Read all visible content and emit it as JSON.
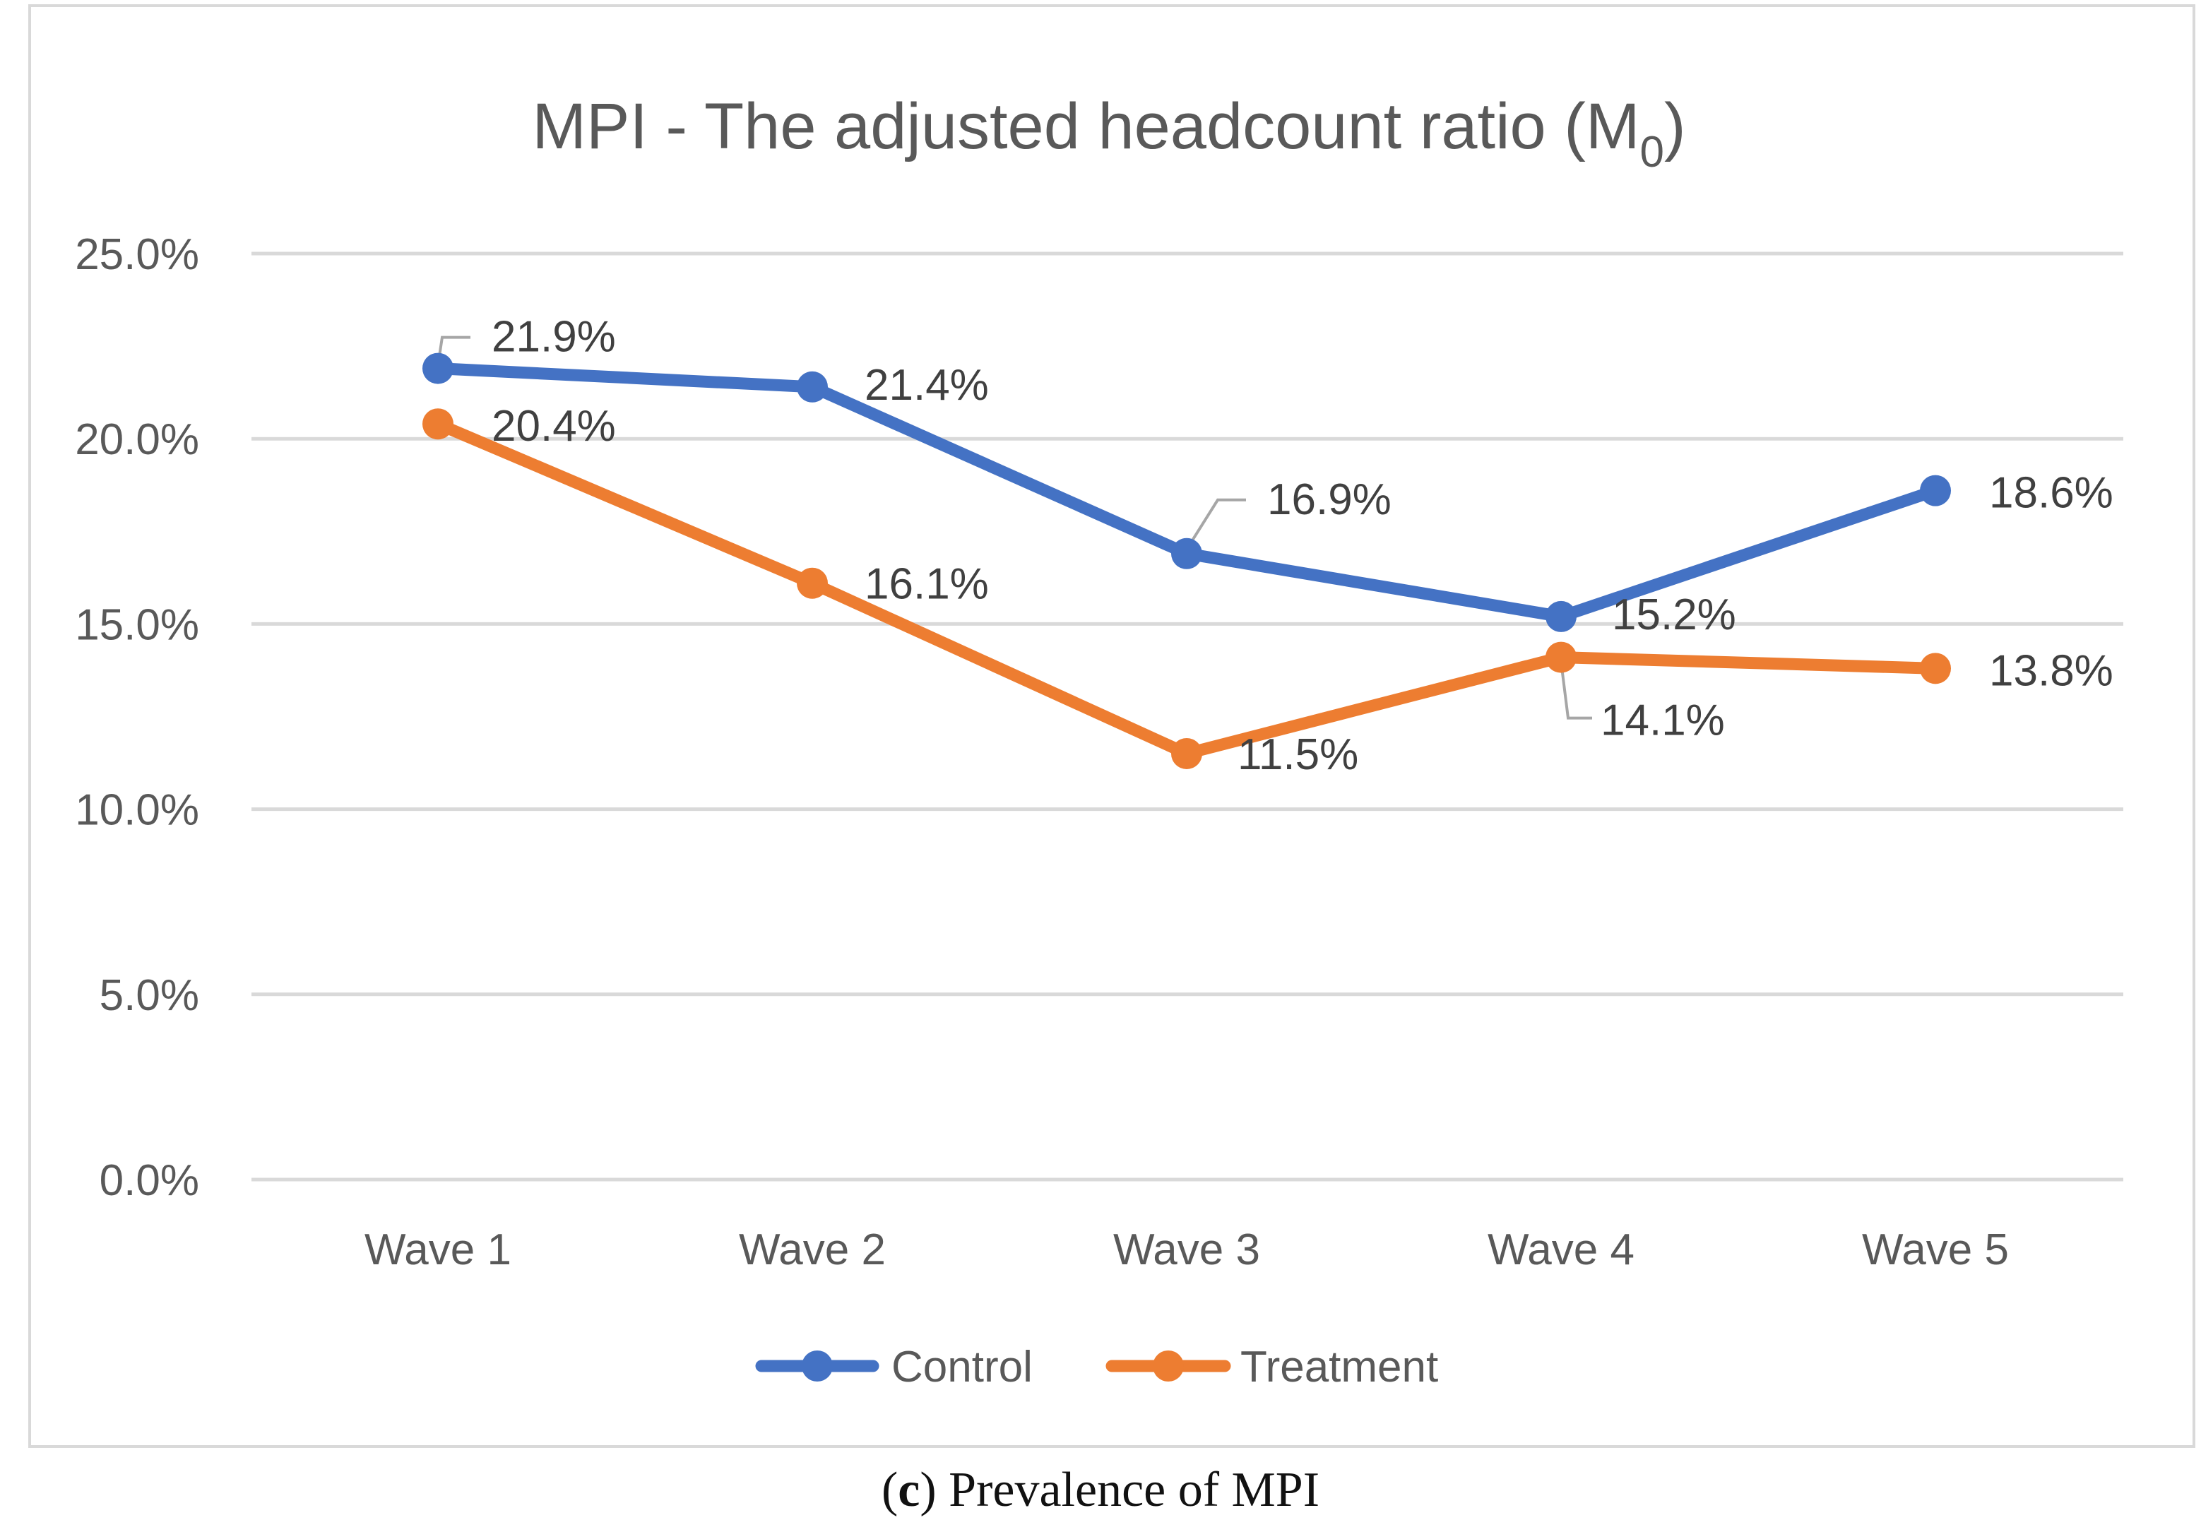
{
  "chart_data": {
    "type": "line",
    "title": "MPI - The adjusted headcount ratio (M",
    "title_subscript": "0",
    "title_suffix": ")",
    "categories": [
      "Wave 1",
      "Wave 2",
      "Wave 3",
      "Wave 4",
      "Wave 5"
    ],
    "series": [
      {
        "name": "Control",
        "color": "#4472c4",
        "values": [
          21.9,
          21.4,
          16.9,
          15.2,
          18.6
        ],
        "labels": [
          "21.9%",
          "21.4%",
          "16.9%",
          "15.2%",
          "18.6%"
        ]
      },
      {
        "name": "Treatment",
        "color": "#ed7d31",
        "values": [
          20.4,
          16.1,
          11.5,
          14.1,
          13.8
        ],
        "labels": [
          "20.4%",
          "16.1%",
          "11.5%",
          "14.1%",
          "13.8%"
        ]
      }
    ],
    "y_ticks": [
      0,
      5,
      10,
      15,
      20,
      25
    ],
    "y_tick_labels": [
      "0.0%",
      "5.0%",
      "10.0%",
      "15.0%",
      "20.0%",
      "25.0%"
    ],
    "ylim": [
      0,
      25
    ],
    "xlabel": "",
    "ylabel": "",
    "grid": true,
    "legend_position": "bottom",
    "gridline_color": "#d9d9d9"
  },
  "caption": {
    "open": "(",
    "letter": "c",
    "close": ")",
    "text": " Prevalence of MPI"
  }
}
